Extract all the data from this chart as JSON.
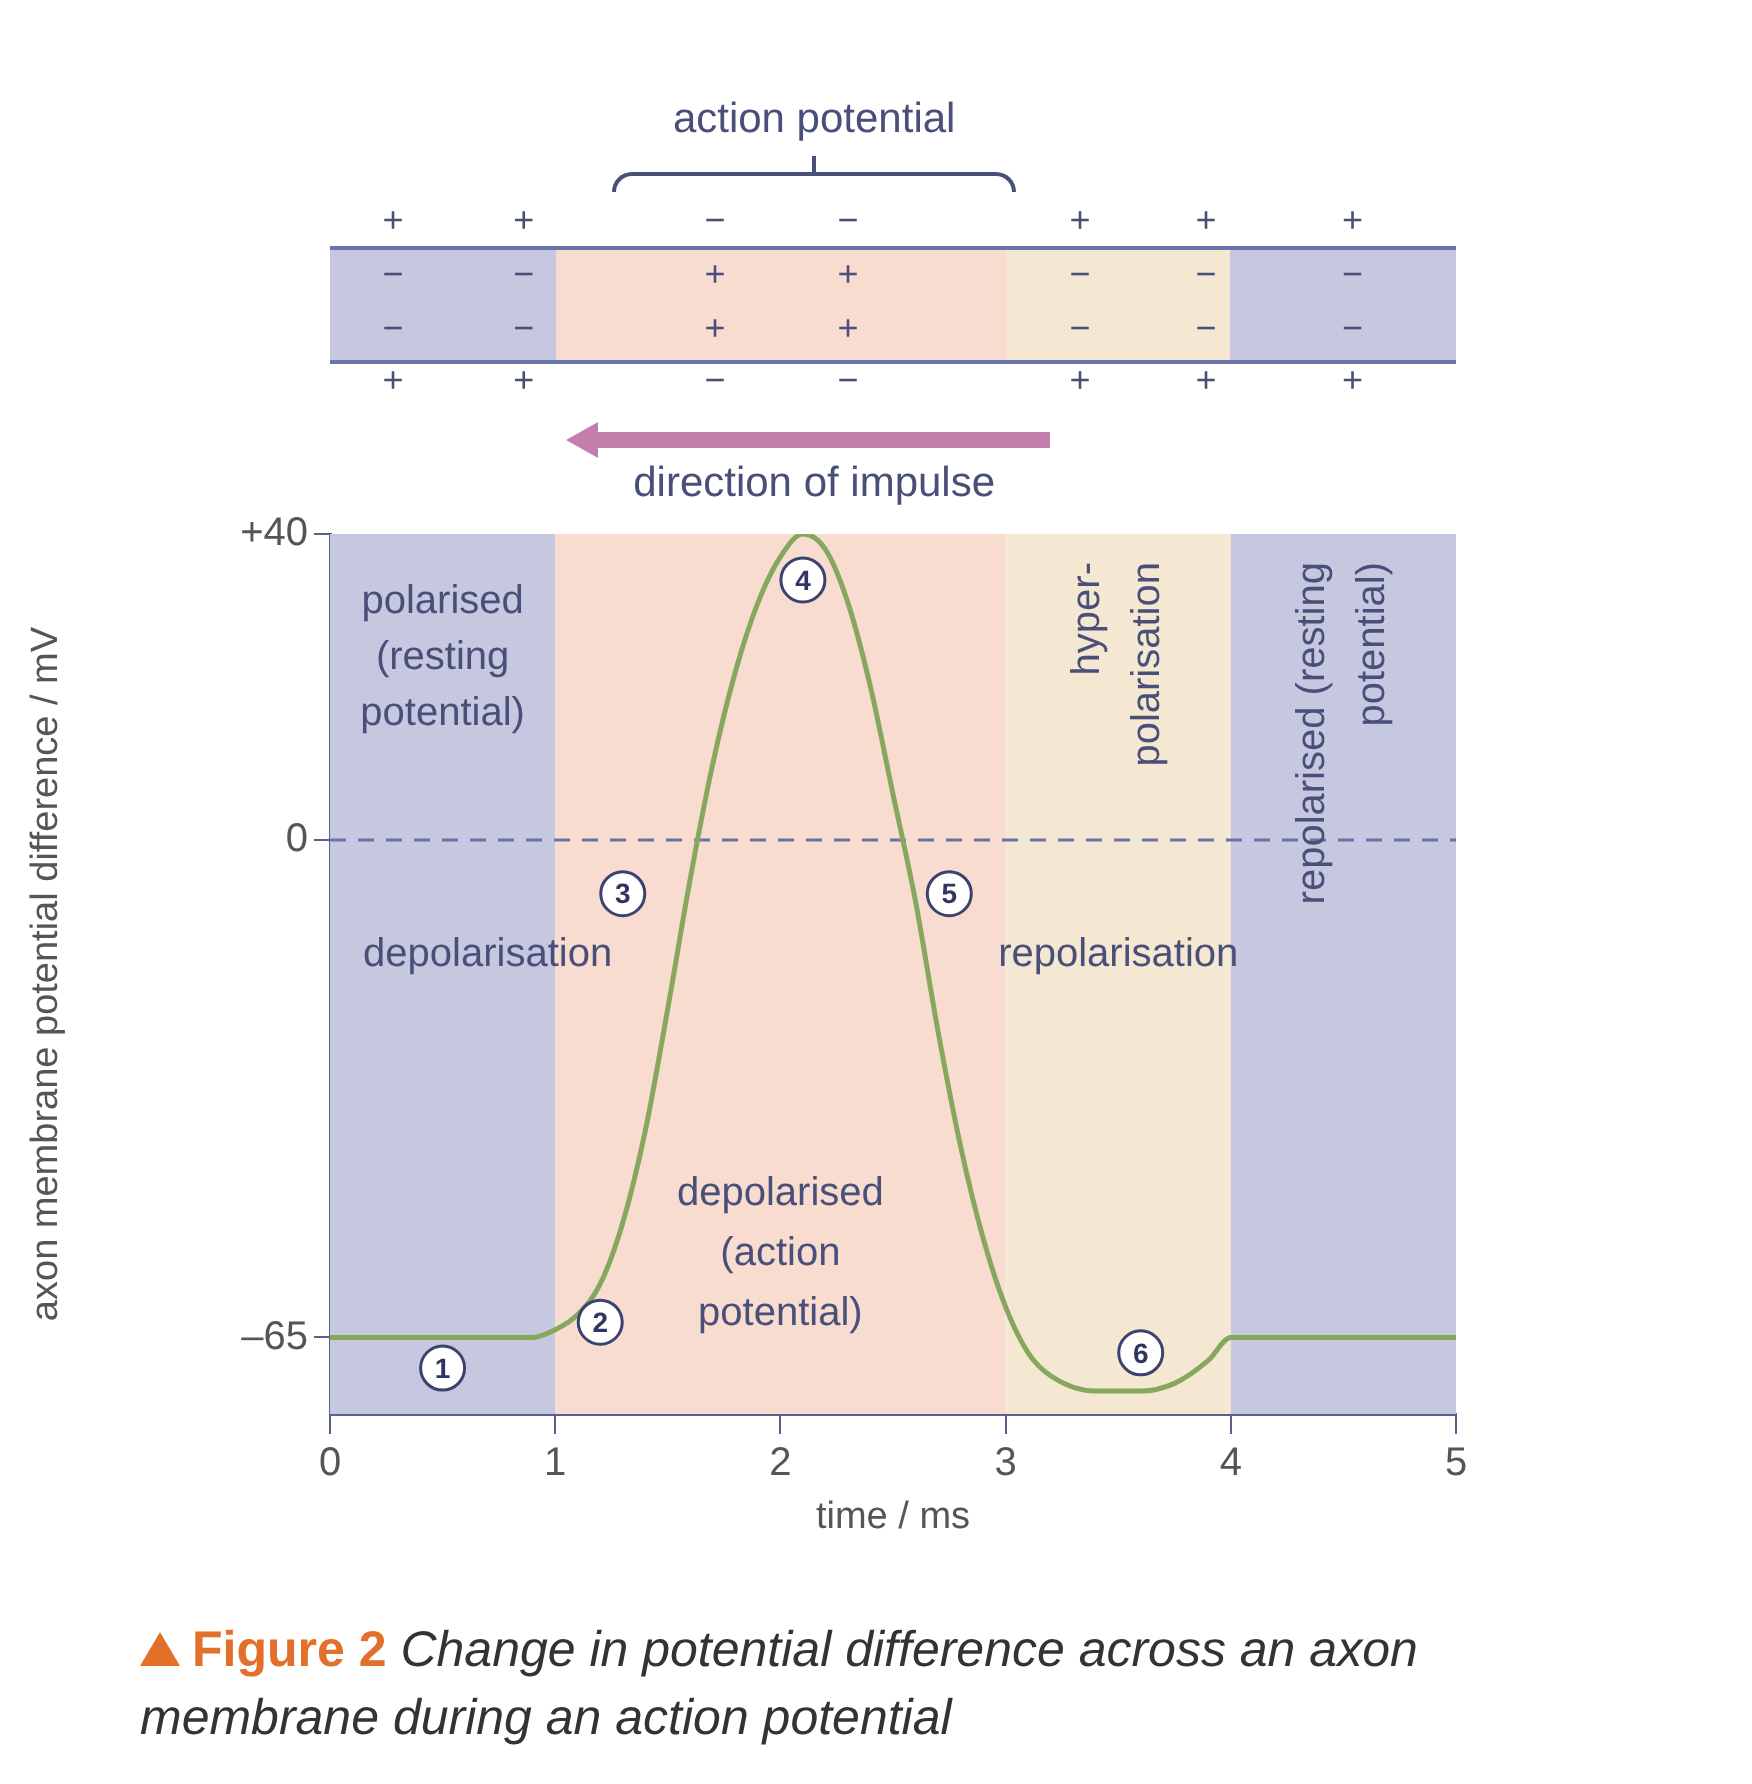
{
  "chart_data": {
    "type": "line",
    "title": "Figure 2",
    "subtitle": "Change in potential difference across an axon membrane during an action potential",
    "xlabel": "time / ms",
    "ylabel": "axon membrane potential difference / mV",
    "x": [
      0,
      0.5,
      0.9,
      1.0,
      1.1,
      1.2,
      1.3,
      1.4,
      1.5,
      1.6,
      1.7,
      1.8,
      1.9,
      2.0,
      2.1,
      2.2,
      2.3,
      2.4,
      2.5,
      2.6,
      2.7,
      2.8,
      2.9,
      3.0,
      3.1,
      3.2,
      3.4,
      3.6,
      3.75,
      3.9,
      4.0,
      4.5,
      5
    ],
    "series": [
      {
        "color": "#86a85e",
        "values": [
          -65,
          -65,
          -65,
          -64,
          -62,
          -58,
          -50,
          -38,
          -22,
          -5,
          10,
          22,
          31,
          37,
          40,
          38,
          31,
          20,
          6,
          -8,
          -25,
          -40,
          -52,
          -61,
          -67,
          -70,
          -72,
          -72,
          -71,
          -68,
          -65,
          -65,
          -65
        ]
      }
    ],
    "xlim": [
      0,
      5
    ],
    "ylim": [
      -75,
      40
    ],
    "xticks": [
      0,
      1,
      2,
      3,
      4,
      5
    ],
    "yticks": [
      {
        "value": 40,
        "label": "+40"
      },
      0,
      {
        "value": -65,
        "label": "–65"
      }
    ],
    "grid": false,
    "ref_lines": [
      {
        "axis": "y",
        "value": 0,
        "color": "#6b73a8",
        "line_style": "dashed"
      }
    ],
    "bands": [
      {
        "axis": "x",
        "from": 0,
        "to": 1,
        "label": "polarised (resting potential)",
        "color": "#c6c8df"
      },
      {
        "axis": "x",
        "from": 1,
        "to": 3,
        "label": "depolarised (action potential)",
        "color": "#f7dccf"
      },
      {
        "axis": "x",
        "from": 3,
        "to": 4,
        "label": "hyper- polarisation",
        "color": "#f4e8d3"
      },
      {
        "axis": "x",
        "from": 4,
        "to": 5,
        "label": "repolarised (resting potential)",
        "color": "#c6c8df"
      }
    ],
    "annotations": [
      "action potential",
      "direction of impulse",
      "+ + − − + + +",
      "− − + + − − −",
      "− − + + − − −",
      "+ + − − + + +",
      {
        "text": "1",
        "x": 0.5,
        "y": -69
      },
      {
        "text": "2",
        "x": 1.2,
        "y": -63
      },
      {
        "text": "3",
        "x": 1.3,
        "y": -7
      },
      {
        "text": "4",
        "x": 2.1,
        "y": 34
      },
      {
        "text": "5",
        "x": 2.75,
        "y": -7
      },
      {
        "text": "6",
        "x": 3.6,
        "y": -67
      },
      "depolarisation",
      "repolarisation"
    ]
  }
}
